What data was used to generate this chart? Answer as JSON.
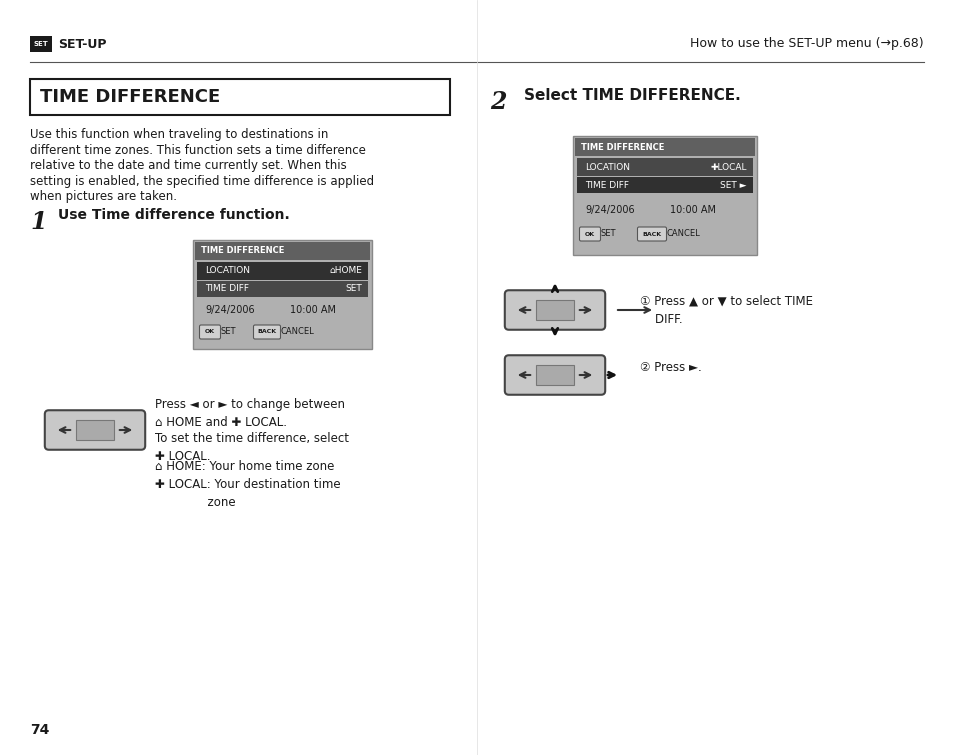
{
  "page_bg": "#ffffff",
  "header_right": "How to use the SET-UP menu (→p.68)",
  "section1_title": "TIME DIFFERENCE",
  "section1_body": "Use this function when traveling to destinations in\ndifferent time zones. This function sets a time difference\nrelative to the date and time currently set. When this\nsetting is enabled, the specified time difference is applied\nwhen pictures are taken.",
  "step1_label": "1",
  "step1_text": "Use Time difference function.",
  "step2_label": "2",
  "step2_text": "Select TIME DIFFERENCE.",
  "press_text1": "Press ◄ or ► to change between\n⌂ HOME and ✚ LOCAL.",
  "press_text2": "To set the time difference, select\n✚ LOCAL.",
  "press_text3": "⌂ HOME: Your home time zone\n✚ LOCAL: Your destination time\n              zone",
  "step2_press1": "① Press ▲ or ▼ to select TIME\n    DIFF.",
  "step2_press2": "② Press ►.",
  "page_number": "74",
  "screen_bg": "#b0b0b0",
  "screen_header_bg": "#606060",
  "screen_loc_row_bg": "#303030",
  "screen_td_row_bg": "#484848",
  "screen_td2_row_bg": "#303030",
  "screen_loc2_row_bg": "#484848"
}
